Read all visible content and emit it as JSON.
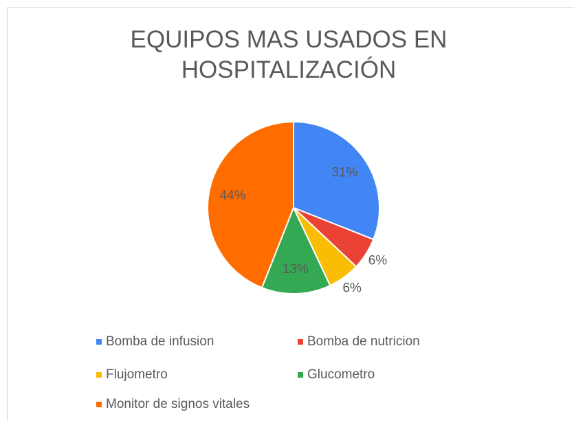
{
  "chart_data": {
    "type": "pie",
    "title": "EQUIPOS MAS USADOS EN HOSPITALIZACIÓN",
    "categories": [
      "Bomba de infusion",
      "Bomba de nutricion",
      "Flujometro",
      "Glucometro",
      "Monitor de signos vitales"
    ],
    "values": [
      31,
      6,
      6,
      13,
      44
    ],
    "value_labels": [
      "31%",
      "6%",
      "6%",
      "13%",
      "44%"
    ],
    "colors": [
      "#4285f4",
      "#ea4335",
      "#fbbc04",
      "#34a853",
      "#ff6d01"
    ],
    "legend": "bottom"
  }
}
